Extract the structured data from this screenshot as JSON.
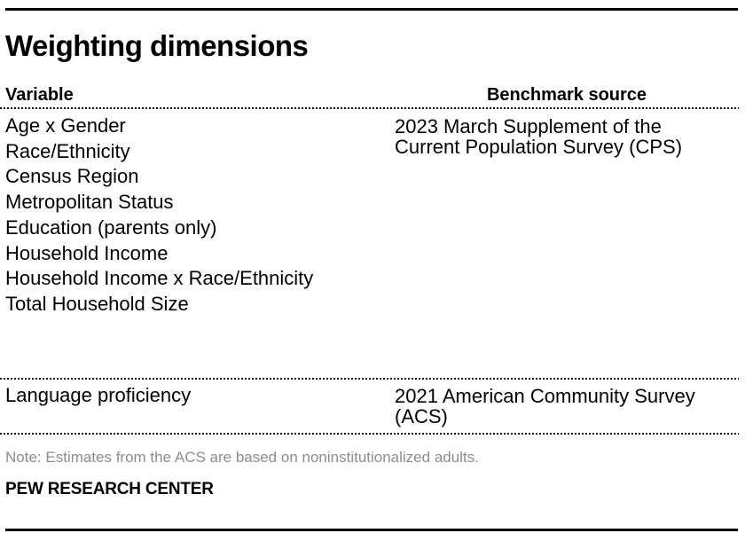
{
  "chart_data": {
    "type": "table",
    "title": "Weighting dimensions",
    "columns": [
      "Variable",
      "Benchmark source"
    ],
    "groups": [
      {
        "variables": [
          "Age x Gender",
          "Race/Ethnicity",
          "Census Region",
          "Metropolitan Status",
          "Education (parents only)",
          "Household Income",
          "Household Income x Race/Ethnicity",
          "Total Household Size"
        ],
        "benchmark": "2023 March Supplement of the Current Population Survey (CPS)",
        "benchmark_lines": [
          "2023 March Supplement of the",
          "Current Population Survey (CPS)"
        ]
      },
      {
        "variables": [
          "Language proficiency"
        ],
        "benchmark": "2021 American Community Survey (ACS)",
        "benchmark_lines": [
          "2021 American Community Survey",
          "(ACS)"
        ]
      }
    ],
    "note": "Note: Estimates from the ACS are based on noninstitutionalized adults.",
    "source": "PEW RESEARCH CENTER",
    "layout": {
      "grid": "off",
      "legend": "none"
    }
  },
  "colors": {
    "text": "#000000",
    "note_text": "#8d8d8d",
    "rule": "#000000",
    "background": "#ffffff"
  }
}
